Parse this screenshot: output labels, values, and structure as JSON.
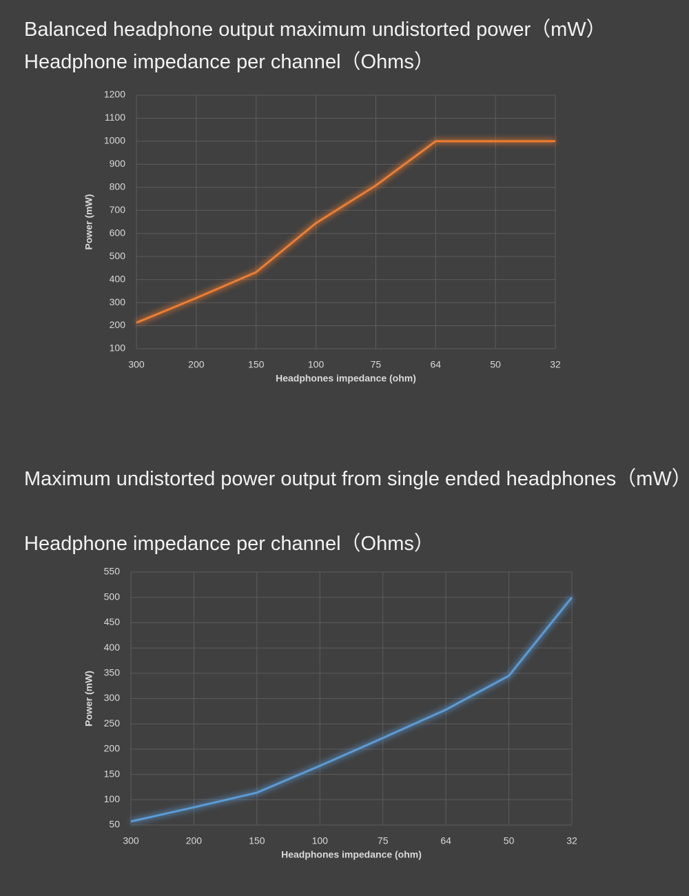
{
  "chart_data": [
    {
      "type": "line",
      "title": "Balanced headphone output maximum undistorted power（mW）",
      "subtitle": "Headphone impedance per channel（Ohms）",
      "x_label": "Headphones impedance (ohm)",
      "y_label": "Power (mW)",
      "categories": [
        "300",
        "200",
        "150",
        "100",
        "75",
        "64",
        "50",
        "32"
      ],
      "series": [
        {
          "name": "Power",
          "color": "#ed7d31",
          "values": [
            213,
            320,
            432,
            645,
            808,
            1000,
            1000,
            1000
          ]
        }
      ],
      "ylim": [
        100,
        1200
      ],
      "yticks": [
        100,
        200,
        300,
        400,
        500,
        600,
        700,
        800,
        900,
        1000,
        1100,
        1200
      ],
      "grid": true
    },
    {
      "type": "line",
      "title": "Maximum undistorted power output from single ended headphones（mW）",
      "subtitle": "Headphone impedance per channel（Ohms）",
      "x_label": "Headphones impedance (ohm)",
      "y_label": "Power (mW)",
      "categories": [
        "300",
        "200",
        "150",
        "100",
        "75",
        "64",
        "50",
        "32"
      ],
      "series": [
        {
          "name": "Power",
          "color": "#5b9bd5",
          "values": [
            57,
            85,
            114,
            167,
            222,
            278,
            345,
            500
          ]
        }
      ],
      "ylim": [
        50,
        550
      ],
      "yticks": [
        50,
        100,
        150,
        200,
        250,
        300,
        350,
        400,
        450,
        500,
        550
      ],
      "grid": true
    }
  ]
}
